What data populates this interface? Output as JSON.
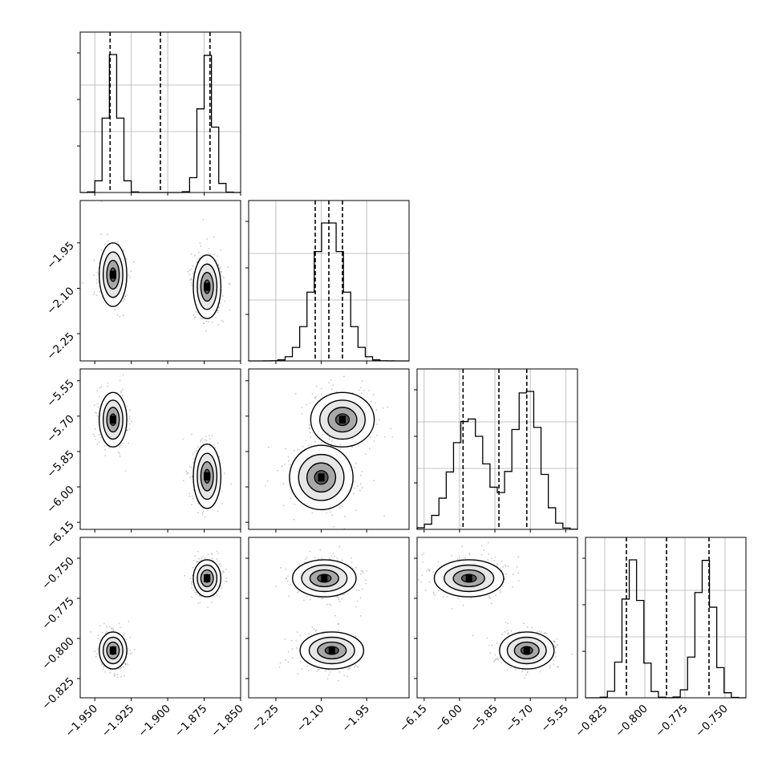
{
  "chart_data": {
    "type": "corner",
    "title": "",
    "grid": true,
    "parameters": [
      {
        "index": 0,
        "range": [
          -1.96,
          -1.85
        ],
        "ticks": [
          -1.95,
          -1.925,
          -1.9,
          -1.875,
          -1.85
        ],
        "tick_labels": [
          "−1.950",
          "−1.925",
          "−1.900",
          "−1.875",
          "−1.850"
        ]
      },
      {
        "index": 1,
        "range": [
          -2.34,
          -1.81
        ],
        "ticks": [
          -2.25,
          -2.1,
          -1.95
        ],
        "tick_labels": [
          "−2.25",
          "−2.10",
          "−1.95"
        ]
      },
      {
        "index": 2,
        "range": [
          -6.18,
          -5.5
        ],
        "ticks": [
          -6.15,
          -6.0,
          -5.85,
          -5.7,
          -5.55
        ],
        "tick_labels": [
          "−6.15",
          "−6.00",
          "−5.85",
          "−5.70",
          "−5.55"
        ]
      },
      {
        "index": 3,
        "range": [
          -0.837,
          -0.737
        ],
        "ticks": [
          -0.825,
          -0.8,
          -0.775,
          -0.75
        ],
        "tick_labels": [
          "−0.825",
          "−0.800",
          "−0.775",
          "−0.750"
        ]
      }
    ],
    "histograms": [
      {
        "param": 0,
        "quantiles": [
          -1.9395,
          -1.905,
          -1.871
        ],
        "modes": [
          {
            "mean": -1.9375,
            "sd": 0.0045,
            "weight": 0.5
          },
          {
            "mean": -1.873,
            "sd": 0.0045,
            "weight": 0.5
          }
        ]
      },
      {
        "param": 1,
        "quantiles": [
          -2.12,
          -2.075,
          -2.03
        ],
        "modes": [
          {
            "mean": -2.075,
            "sd": 0.05,
            "weight": 1.0
          }
        ]
      },
      {
        "param": 2,
        "quantiles": [
          -5.985,
          -5.833,
          -5.715
        ],
        "modes": [
          {
            "mean": -5.96,
            "sd": 0.07,
            "weight": 0.5
          },
          {
            "mean": -5.715,
            "sd": 0.055,
            "weight": 0.5
          }
        ]
      },
      {
        "param": 3,
        "quantiles": [
          -0.8115,
          -0.7865,
          -0.76
        ],
        "modes": [
          {
            "mean": -0.8075,
            "sd": 0.0055,
            "weight": 0.5
          },
          {
            "mean": -0.7625,
            "sd": 0.0055,
            "weight": 0.5
          }
        ]
      }
    ],
    "pairs": [
      {
        "x_param": 0,
        "y_param": 1,
        "clusters": [
          {
            "x": -1.9375,
            "y": -2.055,
            "sx": 0.0045,
            "sy": 0.05
          },
          {
            "x": -1.873,
            "y": -2.095,
            "sx": 0.0045,
            "sy": 0.05
          }
        ]
      },
      {
        "x_param": 0,
        "y_param": 2,
        "clusters": [
          {
            "x": -1.9375,
            "y": -5.715,
            "sx": 0.0045,
            "sy": 0.055
          },
          {
            "x": -1.873,
            "y": -5.955,
            "sx": 0.0045,
            "sy": 0.065
          }
        ]
      },
      {
        "x_param": 0,
        "y_param": 3,
        "clusters": [
          {
            "x": -1.9375,
            "y": -0.8075,
            "sx": 0.0045,
            "sy": 0.0055
          },
          {
            "x": -1.873,
            "y": -0.7625,
            "sx": 0.0045,
            "sy": 0.0055
          }
        ]
      },
      {
        "x_param": 1,
        "y_param": 2,
        "clusters": [
          {
            "x": -2.03,
            "y": -5.715,
            "sx": 0.05,
            "sy": 0.055
          },
          {
            "x": -2.1,
            "y": -5.96,
            "sx": 0.05,
            "sy": 0.065
          }
        ]
      },
      {
        "x_param": 1,
        "y_param": 3,
        "clusters": [
          {
            "x": -2.09,
            "y": -0.7625,
            "sx": 0.05,
            "sy": 0.0055
          },
          {
            "x": -2.065,
            "y": -0.8075,
            "sx": 0.05,
            "sy": 0.0055
          }
        ]
      },
      {
        "x_param": 2,
        "y_param": 3,
        "clusters": [
          {
            "x": -5.96,
            "y": -0.7625,
            "sx": 0.07,
            "sy": 0.0055
          },
          {
            "x": -5.715,
            "y": -0.8075,
            "sx": 0.055,
            "sy": 0.0055
          }
        ]
      }
    ]
  }
}
